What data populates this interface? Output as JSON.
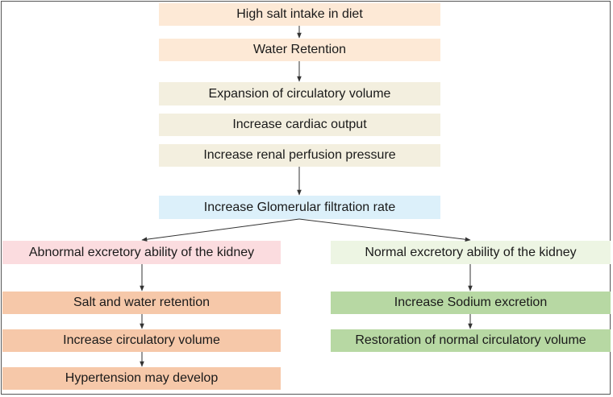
{
  "colors": {
    "peach": "#fde9d6",
    "beige": "#f3efdf",
    "blue": "#dcf0fa",
    "pink": "#fbdcdf",
    "light_green": "#edf5e3",
    "salmon": "#f6c8a9",
    "green": "#b7d8a3",
    "arrow": "#333333",
    "border": "#555555"
  },
  "nodes": {
    "n1": "High salt intake in diet",
    "n2": "Water Retention",
    "n3": "Expansion of circulatory volume",
    "n4": "Increase cardiac output",
    "n5": "Increase renal perfusion pressure",
    "n6": "Increase Glomerular filtration rate",
    "left1": "Abnormal excretory ability of the kidney",
    "left2": "Salt and water retention",
    "left3": "Increase circulatory volume",
    "left4": "Hypertension may develop",
    "right1": "Normal excretory ability of the kidney",
    "right2": "Increase Sodium excretion",
    "right3": "Restoration of normal circulatory volume"
  }
}
